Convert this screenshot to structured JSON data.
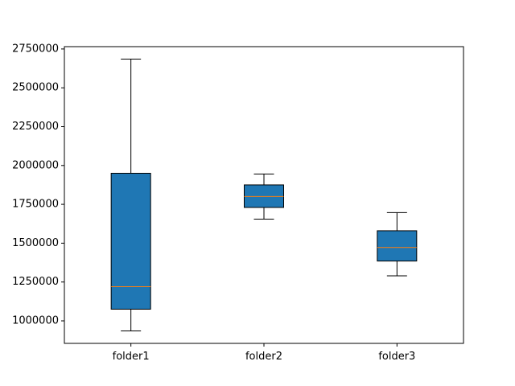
{
  "chart_data": {
    "type": "box",
    "title": "",
    "xlabel": "",
    "ylabel": "",
    "categories": [
      "folder1",
      "folder2",
      "folder3"
    ],
    "boxes": [
      {
        "whisker_low": 935000,
        "q1": 1075000,
        "median": 1220000,
        "q3": 1950000,
        "whisker_high": 2685000
      },
      {
        "whisker_low": 1655000,
        "q1": 1730000,
        "median": 1800000,
        "q3": 1875000,
        "whisker_high": 1945000
      },
      {
        "whisker_low": 1290000,
        "q1": 1385000,
        "median": 1472000,
        "q3": 1580000,
        "whisker_high": 1697000
      }
    ],
    "ylim": [
      855000,
      2765000
    ],
    "yticks": [
      1000000,
      1250000,
      1500000,
      1750000,
      2000000,
      2250000,
      2500000,
      2750000
    ],
    "ytick_labels": [
      "1000000",
      "1250000",
      "1500000",
      "1750000",
      "2000000",
      "2250000",
      "2500000",
      "2750000"
    ],
    "grid": false,
    "legend": "none",
    "colors": {
      "box_fill": "#1f77b4",
      "median": "#ff7f0e",
      "line": "#000000"
    }
  }
}
